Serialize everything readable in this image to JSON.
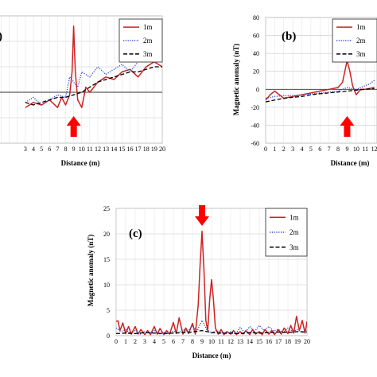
{
  "chart_data": [
    {
      "type": "line",
      "panel_label": "",
      "xlabel": "Distance (m)",
      "ylabel": "",
      "xlim": [
        0,
        20
      ],
      "ylim": [
        -20,
        30
      ],
      "x_ticks": [
        "3",
        "4",
        "5",
        "6",
        "7",
        "8",
        "9",
        "10",
        "11",
        "12",
        "13",
        "14",
        "15",
        "16",
        "17",
        "18",
        "19",
        "20"
      ],
      "grid": true,
      "legend_position": "top-right",
      "arrow": {
        "x": 9,
        "direction": "up",
        "color": "#ff0000"
      },
      "series": [
        {
          "name": "1m",
          "color": "#cc2222",
          "style": "solid",
          "x": [
            3,
            4,
            5,
            6,
            7,
            7.5,
            8,
            8.5,
            8.8,
            9,
            9.2,
            9.5,
            10,
            10.5,
            11,
            12,
            13,
            14,
            15,
            16,
            17,
            18,
            19,
            20
          ],
          "y": [
            -6,
            -4,
            -5,
            -3,
            -6,
            -2,
            -5,
            -1,
            8,
            26,
            8,
            -3,
            -6,
            2,
            0,
            4,
            6,
            5,
            8,
            9,
            6,
            10,
            12,
            10
          ]
        },
        {
          "name": "2m",
          "color": "#3344cc",
          "style": "dotted",
          "x": [
            3,
            4,
            5,
            6,
            7,
            8,
            8.5,
            9,
            9.5,
            10,
            11,
            12,
            13,
            14,
            15,
            16,
            17,
            18,
            19,
            20
          ],
          "y": [
            -4,
            -2,
            -5,
            -3,
            -1,
            -2,
            6,
            4,
            2,
            8,
            6,
            10,
            7,
            9,
            11,
            8,
            12,
            13,
            14,
            12
          ]
        },
        {
          "name": "3m",
          "color": "#000000",
          "style": "dashed",
          "x": [
            3,
            4,
            5,
            6,
            7,
            8,
            9,
            10,
            11,
            12,
            13,
            14,
            15,
            16,
            17,
            18,
            19,
            20
          ],
          "y": [
            -4,
            -5,
            -4,
            -3,
            -2,
            -2,
            -1,
            0,
            2,
            4,
            5,
            6,
            7,
            8,
            8,
            9,
            10,
            10
          ]
        }
      ]
    },
    {
      "type": "line",
      "panel_label": "(b)",
      "xlabel": "Distance (m)",
      "ylabel": "Magnetic anomaly (nT)",
      "xlim": [
        0,
        12
      ],
      "ylim": [
        -60,
        80
      ],
      "y_ticks": [
        "80",
        "60",
        "40",
        "20",
        "0",
        "-20",
        "-40",
        "-60"
      ],
      "x_ticks": [
        "0",
        "1",
        "2",
        "3",
        "4",
        "5",
        "6",
        "7",
        "8",
        "9",
        "10",
        "11",
        "12"
      ],
      "grid": true,
      "legend_position": "top-right",
      "arrow": {
        "x": 9,
        "direction": "up",
        "color": "#ff0000"
      },
      "series": [
        {
          "name": "1m",
          "color": "#cc2222",
          "style": "solid",
          "x": [
            0,
            0.5,
            1,
            1.5,
            2,
            3,
            4,
            5,
            6,
            7,
            8,
            8.5,
            9,
            9.3,
            9.6,
            10,
            10.5,
            11,
            12
          ],
          "y": [
            -12,
            -6,
            -2,
            -6,
            -10,
            -8,
            -6,
            -4,
            -2,
            0,
            2,
            8,
            32,
            20,
            4,
            -6,
            0,
            0,
            2
          ]
        },
        {
          "name": "2m",
          "color": "#3344cc",
          "style": "dotted",
          "x": [
            0,
            1,
            2,
            3,
            4,
            5,
            6,
            7,
            8,
            9,
            10,
            11,
            11.5,
            12
          ],
          "y": [
            -10,
            -8,
            -7,
            -7,
            -6,
            -5,
            -4,
            -3,
            -2,
            2,
            0,
            4,
            6,
            10
          ]
        },
        {
          "name": "3m",
          "color": "#000000",
          "style": "dashed",
          "x": [
            0,
            1,
            2,
            3,
            4,
            5,
            6,
            7,
            8,
            9,
            10,
            11,
            12
          ],
          "y": [
            -14,
            -12,
            -10,
            -9,
            -8,
            -6,
            -5,
            -4,
            -3,
            -2,
            -1,
            0,
            1
          ]
        }
      ]
    },
    {
      "type": "line",
      "panel_label": "(c)",
      "xlabel": "Distance (m)",
      "ylabel": "Magnetic anomaly (nT)",
      "xlim": [
        0,
        20
      ],
      "ylim": [
        0,
        25
      ],
      "y_ticks": [
        "25",
        "20",
        "15",
        "10",
        "5",
        "0"
      ],
      "x_ticks": [
        "0",
        "1",
        "2",
        "3",
        "4",
        "5",
        "6",
        "7",
        "8",
        "9",
        "10",
        "11",
        "12",
        "13",
        "14",
        "15",
        "16",
        "17",
        "18",
        "19",
        "20"
      ],
      "grid": true,
      "legend_position": "top-right",
      "arrow": {
        "x": 9,
        "direction": "down",
        "color": "#ff0000"
      },
      "series": [
        {
          "name": "1m",
          "color": "#cc2222",
          "style": "solid",
          "x": [
            0,
            0.2,
            0.4,
            0.7,
            1,
            1.3,
            1.6,
            2,
            2.3,
            2.6,
            3,
            3.3,
            3.6,
            4,
            4.3,
            4.6,
            5,
            5.3,
            5.6,
            6,
            6.3,
            6.6,
            7,
            7.3,
            7.6,
            8,
            8.3,
            8.6,
            8.8,
            9,
            9.2,
            9.4,
            9.6,
            9.8,
            10,
            10.2,
            10.4,
            10.7,
            11,
            11.3,
            11.6,
            12,
            12.3,
            12.6,
            13,
            13.3,
            13.6,
            14,
            14.3,
            14.6,
            15,
            15.3,
            15.6,
            16,
            16.3,
            16.6,
            17,
            17.3,
            17.6,
            18,
            18.3,
            18.6,
            18.9,
            19.2,
            19.5,
            19.8,
            20
          ],
          "y": [
            2.8,
            2.9,
            1.0,
            2.5,
            0.4,
            1.8,
            0.3,
            1.8,
            0.3,
            1.2,
            0.2,
            1.0,
            0.2,
            1.8,
            0.3,
            1.4,
            0.2,
            1.0,
            0.3,
            2.6,
            0.4,
            3.5,
            0.3,
            1.5,
            0.4,
            2.4,
            0.3,
            6.0,
            14.0,
            20.5,
            13.0,
            3.0,
            1.0,
            7.0,
            11.0,
            7.0,
            1.5,
            0.3,
            1.2,
            0.2,
            0.8,
            0.3,
            1.0,
            0.2,
            0.8,
            0.3,
            1.0,
            0.2,
            1.2,
            0.3,
            0.8,
            0.2,
            1.2,
            0.3,
            1.0,
            0.2,
            1.2,
            0.3,
            1.5,
            0.4,
            2.0,
            0.5,
            3.8,
            1.0,
            3.0,
            0.5,
            2.8
          ]
        },
        {
          "name": "2m",
          "color": "#3344cc",
          "style": "dotted",
          "x": [
            0,
            0.5,
            1,
            1.5,
            2,
            2.5,
            3,
            3.5,
            4,
            4.5,
            5,
            5.5,
            6,
            6.5,
            7,
            7.5,
            8,
            8.5,
            9,
            9.5,
            10,
            10.5,
            11,
            11.5,
            12,
            12.5,
            13,
            13.5,
            14,
            14.5,
            15,
            15.5,
            16,
            16.5,
            17,
            17.5,
            18,
            18.5,
            19,
            19.5,
            20
          ],
          "y": [
            1.5,
            0.8,
            1.2,
            0.4,
            1.0,
            0.3,
            0.8,
            0.5,
            1.0,
            0.3,
            0.6,
            0.4,
            0.9,
            0.5,
            1.2,
            0.8,
            2.0,
            1.0,
            3.0,
            1.2,
            0.5,
            1.0,
            0.6,
            0.4,
            0.8,
            0.3,
            1.6,
            0.6,
            1.8,
            0.8,
            2.0,
            1.0,
            1.8,
            0.9,
            1.2,
            0.6,
            1.5,
            0.8,
            1.2,
            0.6,
            1.0
          ]
        },
        {
          "name": "3m",
          "color": "#000000",
          "style": "dashed",
          "x": [
            0,
            1,
            2,
            3,
            4,
            5,
            6,
            7,
            8,
            9,
            10,
            11,
            12,
            13,
            14,
            15,
            16,
            17,
            18,
            19,
            20
          ],
          "y": [
            0.4,
            0.5,
            0.4,
            0.6,
            0.5,
            0.4,
            0.5,
            0.6,
            0.7,
            1.0,
            0.6,
            0.5,
            0.5,
            0.4,
            0.6,
            0.5,
            0.6,
            0.7,
            0.6,
            0.8,
            0.7
          ]
        }
      ]
    }
  ]
}
